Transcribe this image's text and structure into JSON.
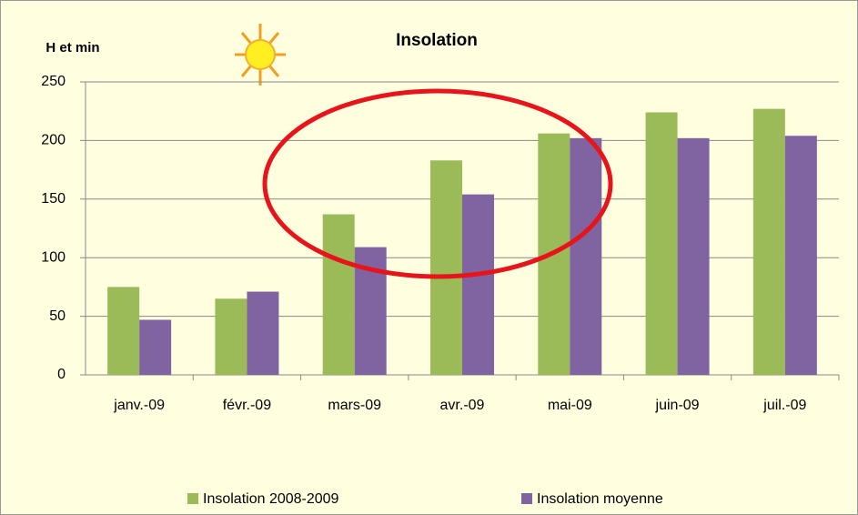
{
  "chart_data": {
    "type": "bar",
    "title": "Insolation",
    "y_label": "H et min",
    "categories": [
      "janv.-09",
      "févr.-09",
      "mars-09",
      "avr.-09",
      "mai-09",
      "juin-09",
      "juil.-09"
    ],
    "series": [
      {
        "name": "Insolation 2008-2009",
        "color": "#9bbb59",
        "values": [
          75,
          65,
          137,
          183,
          206,
          224,
          227
        ]
      },
      {
        "name": "Insolation moyenne",
        "color": "#8064a2",
        "values": [
          47,
          71,
          109,
          154,
          202,
          202,
          204
        ]
      }
    ],
    "ylim": [
      0,
      250
    ],
    "yticks": [
      0,
      50,
      100,
      150,
      200,
      250
    ],
    "grid": true,
    "legend": "bottom"
  }
}
